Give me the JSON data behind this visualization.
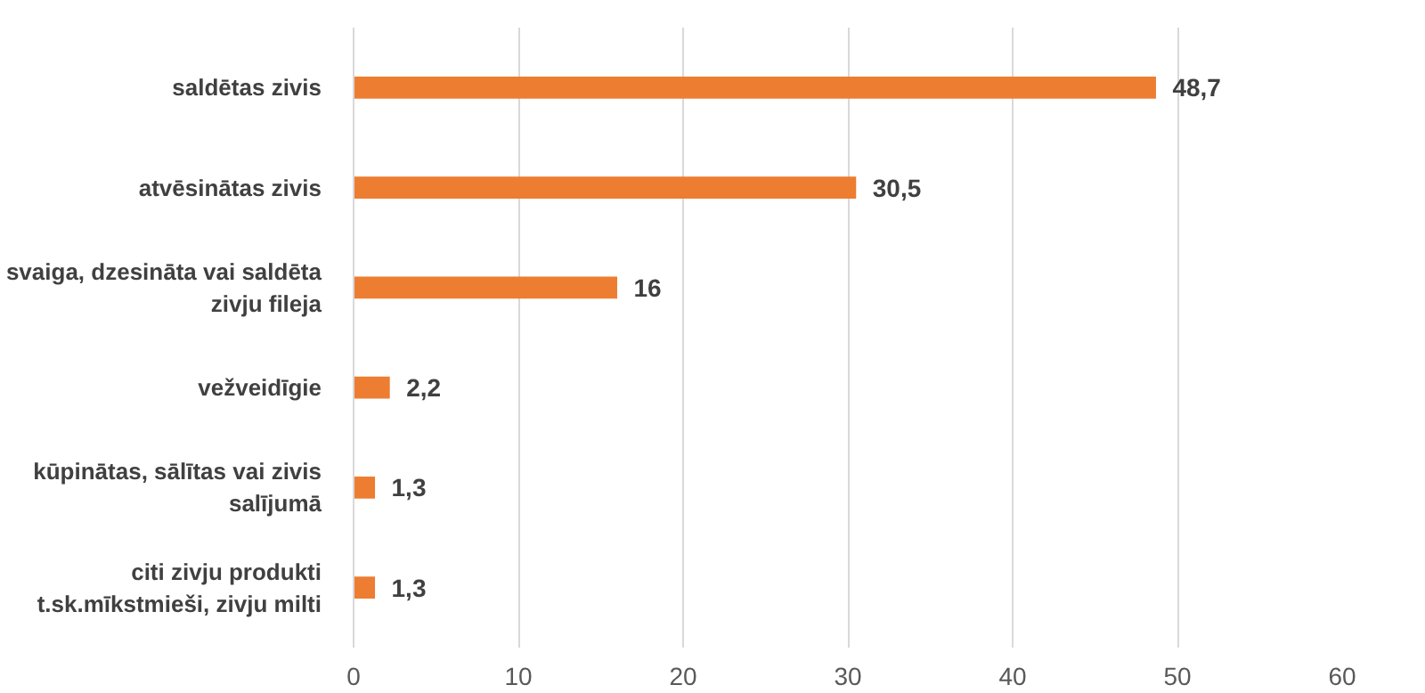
{
  "chart_data": {
    "type": "bar",
    "orientation": "horizontal",
    "categories": [
      "saldētas zivis",
      "atvēsinātas zivis",
      "svaiga, dzesināta vai saldēta zivju fileja",
      "vežveidīgie",
      "kūpinātas, sālītas vai zivis salījumā",
      "citi zivju produkti t.sk.mīkstmieši, zivju milti"
    ],
    "values": [
      48.7,
      30.5,
      16,
      2.2,
      1.3,
      1.3
    ],
    "value_labels": [
      "48,7",
      "30,5",
      "16",
      "2,2",
      "1,3",
      "1,3"
    ],
    "color": "#ed7d31",
    "xlim": [
      0,
      60
    ],
    "xticks": [
      0,
      10,
      20,
      30,
      40,
      50,
      60
    ],
    "grid": "x"
  }
}
